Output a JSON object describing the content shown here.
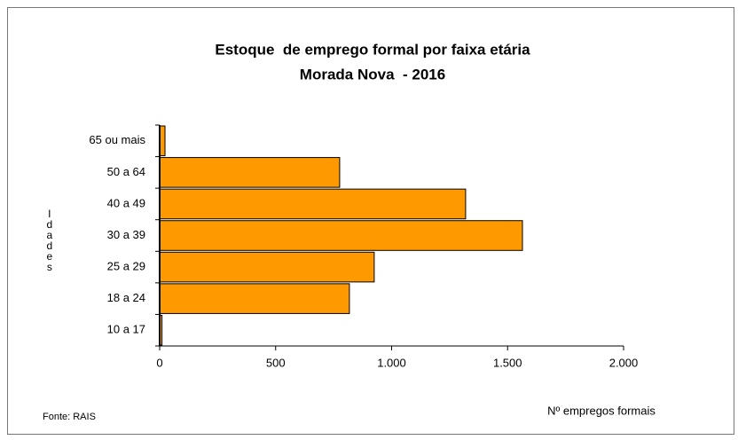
{
  "chart_data": {
    "type": "hbar",
    "title": "Estoque  de emprego formal por faixa etária",
    "subtitle": "Morada Nova  - 2016",
    "ylabel": "Idades",
    "xlabel": "Nº empregos formais",
    "note": "Fonte: RAIS",
    "categories": [
      "65 ou mais",
      "50 a 64",
      "40 a 49",
      "30 a 39",
      "25 a 29",
      "18 a 24",
      "10 a 17"
    ],
    "values": [
      23,
      776,
      1319,
      1564,
      925,
      818,
      10
    ],
    "color": "#ff9900",
    "xlim": [
      0,
      2000
    ],
    "xticks": [
      0,
      500,
      {
        "value": 1000,
        "label": "1.000"
      },
      {
        "value": 1500,
        "label": "1.500"
      },
      {
        "value": 2000,
        "label": "2.000"
      }
    ]
  }
}
